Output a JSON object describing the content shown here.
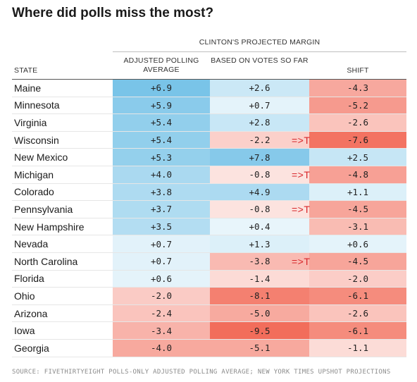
{
  "title": "Where did polls miss the most?",
  "group_header": "CLINTON'S PROJECTED MARGIN",
  "columns": {
    "state": "STATE",
    "polling": "ADJUSTED POLLING AVERAGE",
    "votes": "BASED ON VOTES SO FAR",
    "shift": "SHIFT"
  },
  "colors": {
    "blue_strong": "#6fbfe6",
    "red_strong": "#f26d5b",
    "annotation": "#d8262a"
  },
  "rows": [
    {
      "state": "Maine",
      "polling": "+6.9",
      "votes": "+2.6",
      "shift": "-4.3",
      "mark": ""
    },
    {
      "state": "Minnesota",
      "polling": "+5.9",
      "votes": "+0.7",
      "shift": "-5.2",
      "mark": ""
    },
    {
      "state": "Virginia",
      "polling": "+5.4",
      "votes": "+2.8",
      "shift": "-2.6",
      "mark": ""
    },
    {
      "state": "Wisconsin",
      "polling": "+5.4",
      "votes": "-2.2",
      "shift": "-7.6",
      "mark": "=>T"
    },
    {
      "state": "New Mexico",
      "polling": "+5.3",
      "votes": "+7.8",
      "shift": "+2.5",
      "mark": ""
    },
    {
      "state": "Michigan",
      "polling": "+4.0",
      "votes": "-0.8",
      "shift": "-4.8",
      "mark": "=>T"
    },
    {
      "state": "Colorado",
      "polling": "+3.8",
      "votes": "+4.9",
      "shift": "+1.1",
      "mark": ""
    },
    {
      "state": "Pennsylvania",
      "polling": "+3.7",
      "votes": "-0.8",
      "shift": "-4.5",
      "mark": "=>T"
    },
    {
      "state": "New Hampshire",
      "polling": "+3.5",
      "votes": "+0.4",
      "shift": "-3.1",
      "mark": ""
    },
    {
      "state": "Nevada",
      "polling": "+0.7",
      "votes": "+1.3",
      "shift": "+0.6",
      "mark": ""
    },
    {
      "state": "North Carolina",
      "polling": "+0.7",
      "votes": "-3.8",
      "shift": "-4.5",
      "mark": "=>T"
    },
    {
      "state": "Florida",
      "polling": "+0.6",
      "votes": "-1.4",
      "shift": "-2.0",
      "mark": ""
    },
    {
      "state": "Ohio",
      "polling": "-2.0",
      "votes": "-8.1",
      "shift": "-6.1",
      "mark": ""
    },
    {
      "state": "Arizona",
      "polling": "-2.4",
      "votes": "-5.0",
      "shift": "-2.6",
      "mark": ""
    },
    {
      "state": "Iowa",
      "polling": "-3.4",
      "votes": "-9.5",
      "shift": "-6.1",
      "mark": ""
    },
    {
      "state": "Georgia",
      "polling": "-4.0",
      "votes": "-5.1",
      "shift": "-1.1",
      "mark": ""
    }
  ],
  "source": "SOURCE: FIVETHIRTYEIGHT POLLS-ONLY ADJUSTED POLLING AVERAGE; NEW YORK TIMES UPSHOT PROJECTIONS"
}
